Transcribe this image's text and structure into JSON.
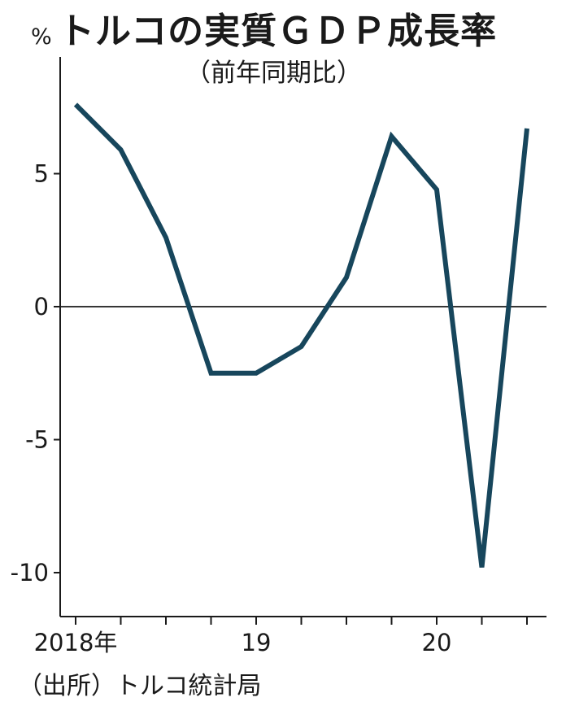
{
  "chart_data": {
    "type": "line",
    "title": "トルコの実質ＧＤＰ成長率",
    "subtitle": "（前年同期比）",
    "unit": "%",
    "source": "（出所）トルコ統計局",
    "x_tick_labels": [
      "2018年",
      "19",
      "20"
    ],
    "y_ticks": [
      5,
      0,
      -5,
      -10
    ],
    "y_tick_labels": [
      "5",
      "0",
      "-5",
      "-10"
    ],
    "ylim": [
      -11.5,
      9.0
    ],
    "grid": false,
    "colors": {
      "line": "#17465c",
      "axis": "#1a1a1a"
    },
    "series": [
      {
        "x": [
          "2018-Q1",
          "2018-Q2",
          "2018-Q3",
          "2018-Q4",
          "2019-Q1",
          "2019-Q2",
          "2019-Q3",
          "2019-Q4",
          "2020-Q1",
          "2020-Q2",
          "2020-Q3"
        ],
        "values": [
          7.6,
          5.9,
          2.6,
          -2.5,
          -2.5,
          -1.5,
          1.1,
          6.4,
          4.4,
          -9.8,
          6.7
        ]
      }
    ]
  }
}
